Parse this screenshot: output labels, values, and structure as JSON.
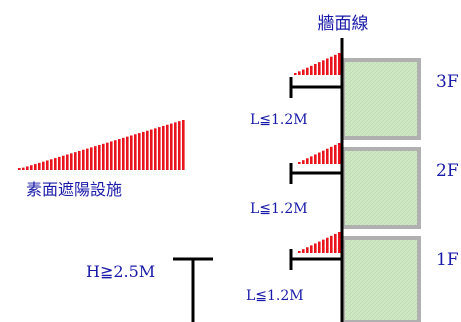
{
  "wall_line_label": "牆面線",
  "legend_label": "素面遮陽設施",
  "floors": [
    {
      "label": "3F",
      "overhang_label": "L≦1.2M"
    },
    {
      "label": "2F",
      "overhang_label": "L≦1.2M"
    },
    {
      "label": "1F",
      "overhang_label": "L≦1.2M"
    }
  ],
  "height_label": "H≧2.5M",
  "colors": {
    "shade_red": "#e8141e",
    "ink_blue": "#1a1aa8",
    "panel_green": "#cfe8c4",
    "panel_border": "#b0b0b0",
    "line_black": "#000000"
  }
}
